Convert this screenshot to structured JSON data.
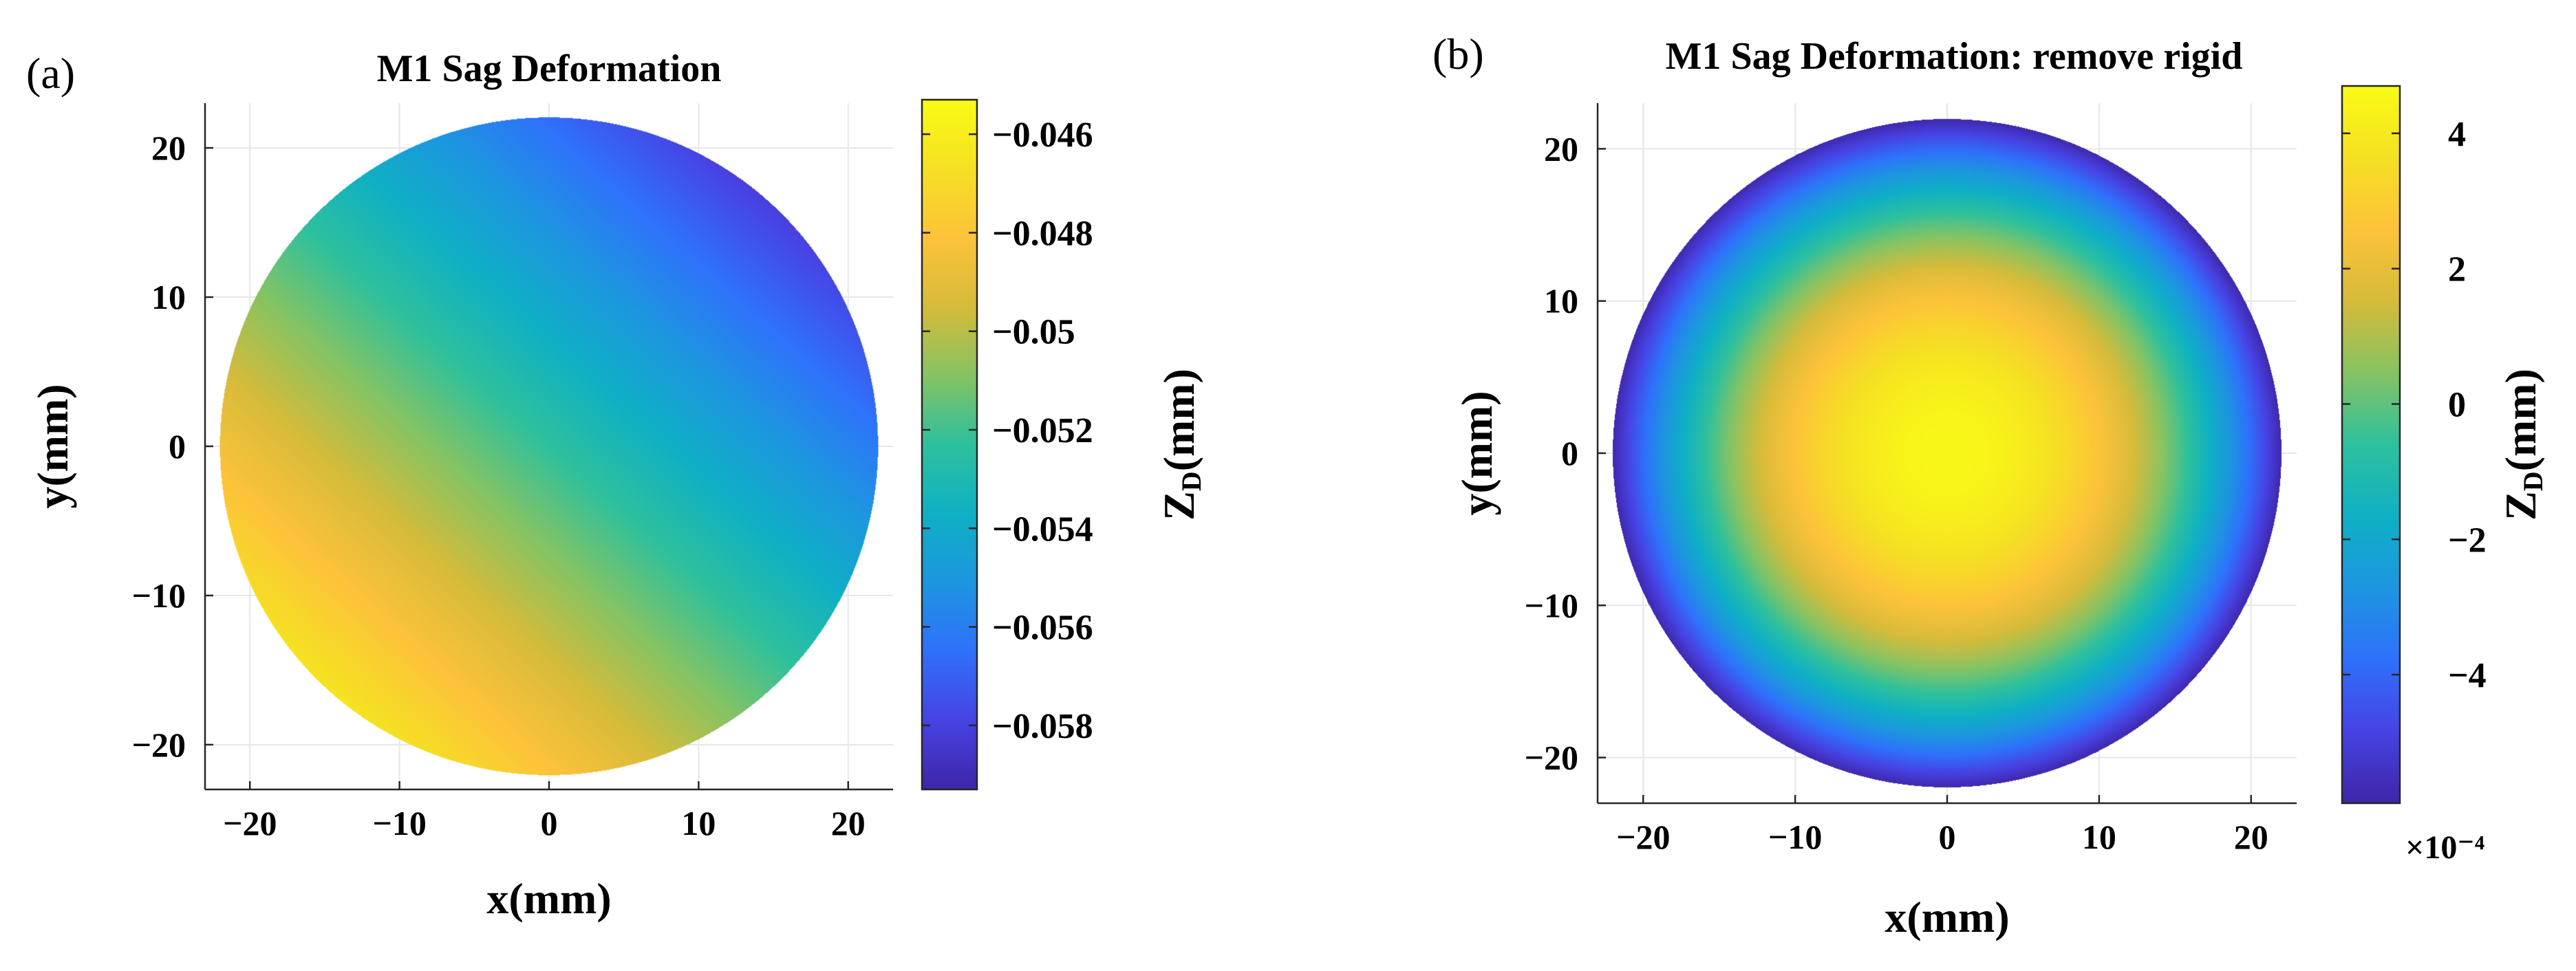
{
  "figure": {
    "panels": [
      {
        "label": "(a)"
      },
      {
        "label": "(b)"
      }
    ]
  },
  "colormap": [
    "#3e26a8",
    "#4743e4",
    "#2f71fb",
    "#1d96e0",
    "#0fb0c4",
    "#2ec09d",
    "#86c363",
    "#d6bb3a",
    "#fdc23a",
    "#f5e023",
    "#f9fb15"
  ],
  "chart_data": [
    {
      "type": "heatmap",
      "title": "M1 Sag Deformation",
      "xlabel": "x(mm)",
      "ylabel": "y(mm)",
      "xlim": [
        -23,
        23
      ],
      "ylim": [
        -23,
        23
      ],
      "xticks": [
        -20,
        -10,
        0,
        10,
        20
      ],
      "yticks": [
        20,
        10,
        0,
        -10,
        -20
      ],
      "xtick_labels": [
        "−20",
        "−10",
        "0",
        "10",
        "20"
      ],
      "ytick_labels": [
        "20",
        "10",
        "0",
        "−10",
        "−20"
      ],
      "grid": true,
      "aperture_radius": 22,
      "surface": {
        "model": "tilt",
        "center_value": -0.0525,
        "min_value": -0.0592,
        "max_value": -0.0458,
        "min_at": [
          17,
          20
        ],
        "max_at": [
          -17,
          -18
        ]
      },
      "colorbar": {
        "label_main": "Z",
        "label_sub": "D",
        "label_unit": "(mm)",
        "range": [
          -0.0593,
          -0.0453
        ],
        "ticks": [
          -0.046,
          -0.048,
          -0.05,
          -0.052,
          -0.054,
          -0.056,
          -0.058
        ],
        "tick_labels": [
          "−0.046",
          "−0.048",
          "−0.05",
          "−0.052",
          "−0.054",
          "−0.056",
          "−0.058"
        ],
        "multiplier": ""
      }
    },
    {
      "type": "heatmap",
      "title": "M1 Sag Deformation: remove rigid",
      "xlabel": "x(mm)",
      "ylabel": "y(mm)",
      "xlim": [
        -23,
        23
      ],
      "ylim": [
        -23,
        23
      ],
      "xticks": [
        -20,
        -10,
        0,
        10,
        20
      ],
      "yticks": [
        20,
        10,
        0,
        -10,
        -20
      ],
      "xtick_labels": [
        "−20",
        "−10",
        "0",
        "10",
        "20"
      ],
      "ytick_labels": [
        "20",
        "10",
        "0",
        "−10",
        "−20"
      ],
      "grid": true,
      "aperture_radius": 22,
      "surface": {
        "model": "radial",
        "center_value": 4.5,
        "edge_value": -5.8,
        "unit_scale": 0.0001
      },
      "colorbar": {
        "label_main": "Z",
        "label_sub": "D",
        "label_unit": "(mm)",
        "range": [
          -5.9,
          4.7
        ],
        "ticks": [
          4,
          2,
          0,
          -2,
          -4
        ],
        "tick_labels": [
          "4",
          "2",
          "0",
          "−2",
          "−4"
        ],
        "multiplier": "×10⁻⁴"
      }
    }
  ]
}
